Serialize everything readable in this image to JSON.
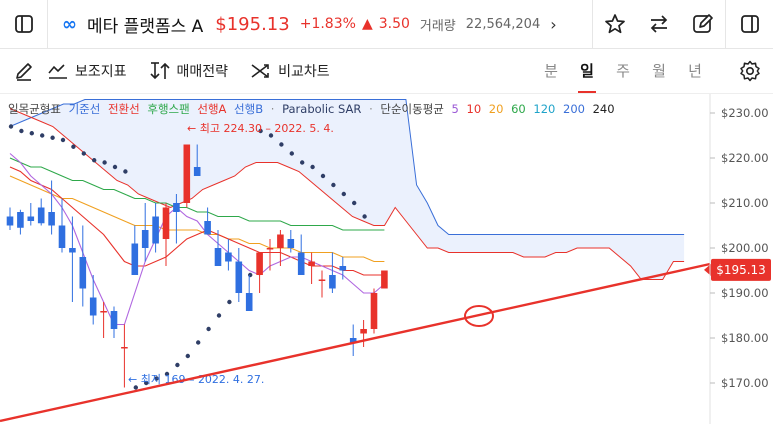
{
  "header": {
    "logo": "∞",
    "name": "메타 플랫폼스 A",
    "price": "$195.13",
    "change_pct": "+1.83%",
    "change_amt": "3.50",
    "volume_label": "거래량",
    "volume": "22,564,204"
  },
  "toolbar": {
    "indicators_label": "보조지표",
    "strategy_label": "매매전략",
    "compare_label": "비교차트",
    "periods": [
      "분",
      "일",
      "주",
      "월",
      "년"
    ],
    "active_period": "일"
  },
  "legend": {
    "ichimoku": "일목균형표",
    "base_line": "기준선",
    "conversion_line": "전환선",
    "lagging_span": "후행스팬",
    "span_a": "선행A",
    "span_b": "선행B",
    "psar": "Parabolic SAR",
    "ma_label": "단순이동평균",
    "ma_periods": [
      "5",
      "10",
      "20",
      "60",
      "120",
      "200",
      "240"
    ],
    "ma_colors": [
      "#9b59d6",
      "#e8322b",
      "#f0a020",
      "#2ea84a",
      "#1fa3c9",
      "#3a6fd8",
      "#222222"
    ]
  },
  "chart_data": {
    "type": "candlestick",
    "ylim": [
      165,
      233
    ],
    "y_ticks": [
      170,
      180,
      190,
      200,
      210,
      220,
      230
    ],
    "y_tick_labels": [
      "$170.00",
      "$180.00",
      "$190.00",
      "$200.00",
      "$210.00",
      "$220.00",
      "$230.00"
    ],
    "last_price": 195.13,
    "last_price_label": "$195.13",
    "annotations": {
      "high": "최고 224.30 – 2022. 5. 4.",
      "low": "최저 169 – 2022. 4. 27."
    },
    "candles": [
      {
        "o": 207,
        "h": 209,
        "l": 204,
        "c": 205
      },
      {
        "o": 208,
        "h": 208.5,
        "l": 203,
        "c": 204.5
      },
      {
        "o": 207,
        "h": 210,
        "l": 205,
        "c": 206
      },
      {
        "o": 209,
        "h": 211,
        "l": 205,
        "c": 205.5
      },
      {
        "o": 208,
        "h": 215,
        "l": 203,
        "c": 205
      },
      {
        "o": 205,
        "h": 211,
        "l": 199,
        "c": 200
      },
      {
        "o": 200,
        "h": 207,
        "l": 188,
        "c": 199
      },
      {
        "o": 198,
        "h": 205,
        "l": 187,
        "c": 191
      },
      {
        "o": 189,
        "h": 194,
        "l": 183,
        "c": 185
      },
      {
        "o": 186,
        "h": 188,
        "l": 180,
        "c": 186
      },
      {
        "o": 186,
        "h": 187,
        "l": 180,
        "c": 182
      },
      {
        "o": 178,
        "h": 183,
        "l": 169,
        "c": 178
      },
      {
        "o": 201,
        "h": 205,
        "l": 194,
        "c": 194
      },
      {
        "o": 204,
        "h": 210,
        "l": 197,
        "c": 200
      },
      {
        "o": 207,
        "h": 210,
        "l": 199,
        "c": 201
      },
      {
        "o": 202,
        "h": 210,
        "l": 196,
        "c": 209
      },
      {
        "o": 210,
        "h": 212,
        "l": 201,
        "c": 208
      },
      {
        "o": 210,
        "h": 223,
        "l": 209,
        "c": 223
      },
      {
        "o": 218,
        "h": 223,
        "l": 216,
        "c": 216
      },
      {
        "o": 206,
        "h": 209,
        "l": 203,
        "c": 203
      },
      {
        "o": 200,
        "h": 204,
        "l": 196,
        "c": 196
      },
      {
        "o": 199,
        "h": 202,
        "l": 195,
        "c": 197
      },
      {
        "o": 197,
        "h": 200,
        "l": 188,
        "c": 190
      },
      {
        "o": 190,
        "h": 194,
        "l": 186,
        "c": 186
      },
      {
        "o": 194,
        "h": 199,
        "l": 190,
        "c": 199
      },
      {
        "o": 200,
        "h": 202,
        "l": 195,
        "c": 200
      },
      {
        "o": 200,
        "h": 204,
        "l": 196,
        "c": 203
      },
      {
        "o": 202,
        "h": 204,
        "l": 199,
        "c": 200
      },
      {
        "o": 199,
        "h": 203,
        "l": 194,
        "c": 194
      },
      {
        "o": 196,
        "h": 199,
        "l": 192,
        "c": 197
      },
      {
        "o": 193,
        "h": 195,
        "l": 189,
        "c": 193
      },
      {
        "o": 194,
        "h": 199,
        "l": 190,
        "c": 191
      },
      {
        "o": 196,
        "h": 198,
        "l": 193,
        "c": 195
      },
      {
        "o": 180,
        "h": 183,
        "l": 176,
        "c": 179
      },
      {
        "o": 181,
        "h": 184,
        "l": 178,
        "c": 182
      },
      {
        "o": 182,
        "h": 191,
        "l": 181,
        "c": 190
      },
      {
        "o": 191,
        "h": 195,
        "l": 191,
        "c": 195
      }
    ],
    "psar": [
      227,
      226,
      225.5,
      225,
      224.5,
      224,
      222.5,
      221,
      219.5,
      219,
      218,
      217,
      169,
      170,
      171,
      172,
      174,
      176,
      179,
      182,
      185,
      188,
      191,
      194,
      226,
      225,
      223,
      221,
      219,
      218,
      216,
      214,
      212,
      210,
      207
    ],
    "ma5": [
      221,
      219,
      216,
      214,
      212,
      209,
      205,
      199,
      193,
      188,
      183,
      183,
      190,
      197,
      202,
      207,
      209,
      207,
      206,
      203,
      201,
      199,
      197,
      195,
      194,
      196,
      197,
      198,
      198,
      197,
      196,
      195,
      194,
      192,
      190,
      190,
      192
    ],
    "ma20": [
      218,
      217,
      215,
      214,
      213,
      211,
      209,
      207,
      205,
      203,
      200,
      197,
      196,
      196,
      197,
      198,
      200,
      202,
      203,
      204,
      203,
      202,
      201,
      200,
      199,
      199,
      199,
      198,
      197,
      196,
      196,
      196,
      195,
      195,
      194,
      194,
      194
    ],
    "ma60": [
      216,
      215,
      214,
      213,
      212,
      211,
      211,
      210,
      209,
      208,
      207,
      206,
      205,
      205,
      205,
      204,
      204,
      204,
      204,
      203,
      203,
      202,
      202,
      201,
      201,
      200,
      200,
      200,
      199,
      199,
      199,
      199,
      198,
      198,
      198,
      197,
      197
    ],
    "ma120": [
      220,
      219,
      218,
      218,
      217,
      216,
      215,
      215,
      214,
      213,
      213,
      212,
      211,
      211,
      210,
      210,
      209,
      209,
      208,
      208,
      207,
      207,
      207,
      206,
      206,
      206,
      206,
      205,
      205,
      205,
      205,
      205,
      204,
      204,
      204,
      204,
      204
    ],
    "span_a": [
      227,
      228,
      229,
      230,
      231,
      232,
      232,
      233,
      233,
      233,
      233,
      233,
      233,
      233,
      233,
      233,
      233,
      233,
      233,
      233,
      233,
      233,
      233,
      233,
      233,
      233,
      233,
      233,
      233,
      233,
      233,
      233,
      233,
      233,
      233,
      233,
      233,
      233,
      214,
      210,
      205,
      203,
      203,
      203,
      203,
      203,
      203,
      203,
      203,
      203,
      203,
      203,
      203,
      203,
      203,
      203,
      203,
      203,
      203,
      203,
      203,
      203,
      203,
      203
    ],
    "span_b": [
      231,
      230,
      229,
      228,
      227,
      225,
      223,
      221,
      219,
      217,
      215,
      214,
      212,
      211,
      210,
      209,
      210,
      211,
      213,
      214,
      215,
      216,
      218,
      219,
      219,
      219,
      218,
      217,
      215,
      213,
      211,
      209,
      207,
      206,
      205,
      205,
      209,
      206,
      203,
      200,
      200,
      199,
      199,
      199,
      199,
      199,
      199,
      199,
      198,
      198,
      198,
      199,
      199,
      200,
      200,
      200,
      200,
      198,
      196,
      193,
      193,
      193,
      197,
      197
    ]
  }
}
